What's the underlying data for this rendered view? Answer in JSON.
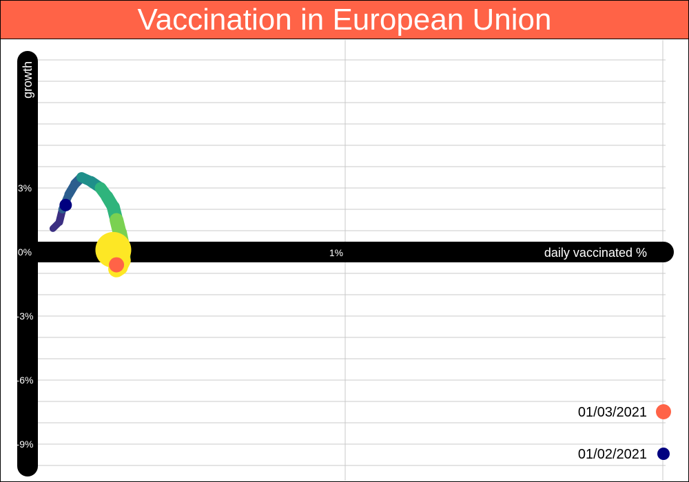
{
  "title": "Vaccination in European Union",
  "chart_data": {
    "type": "scatter",
    "title": "Vaccination in European Union",
    "xlabel": "daily vaccinated %",
    "ylabel": "growth",
    "x_ticks": [
      "1%"
    ],
    "y_ticks": [
      "3%",
      "0%",
      "-3%",
      "-6%",
      "-9%"
    ],
    "xlim": [
      -0.05,
      1.0
    ],
    "ylim": [
      -10.0,
      10.0
    ],
    "grid": true,
    "series": [
      {
        "type": "line",
        "x": [
          0.04,
          0.05,
          0.055,
          0.065,
          0.075,
          0.085,
          0.1,
          0.115,
          0.125,
          0.135,
          0.14,
          0.145,
          0.15,
          0.15,
          0.145,
          0.14
        ],
        "y": [
          1.1,
          1.4,
          2.0,
          2.7,
          3.2,
          3.5,
          3.3,
          3.0,
          2.6,
          2.1,
          1.5,
          0.9,
          0.2,
          -0.4,
          -0.7,
          -0.8
        ],
        "color_scale": [
          "#3b2f82",
          "#2c5e8e",
          "#1f8f8a",
          "#2fb47c",
          "#7ad151",
          "#fde725"
        ]
      },
      {
        "type": "points",
        "x": [
          0.06,
          0.14
        ],
        "y": [
          2.2,
          -0.6
        ],
        "labels": [
          "01/02/2021",
          "01/03/2021"
        ],
        "colors": [
          "#000080",
          "#ff6347"
        ]
      }
    ],
    "legend": {
      "placement": "bottom-right",
      "entries": [
        {
          "label": "01/03/2021",
          "color": "#ff6347"
        },
        {
          "label": "01/02/2021",
          "color": "#000080"
        }
      ]
    }
  }
}
